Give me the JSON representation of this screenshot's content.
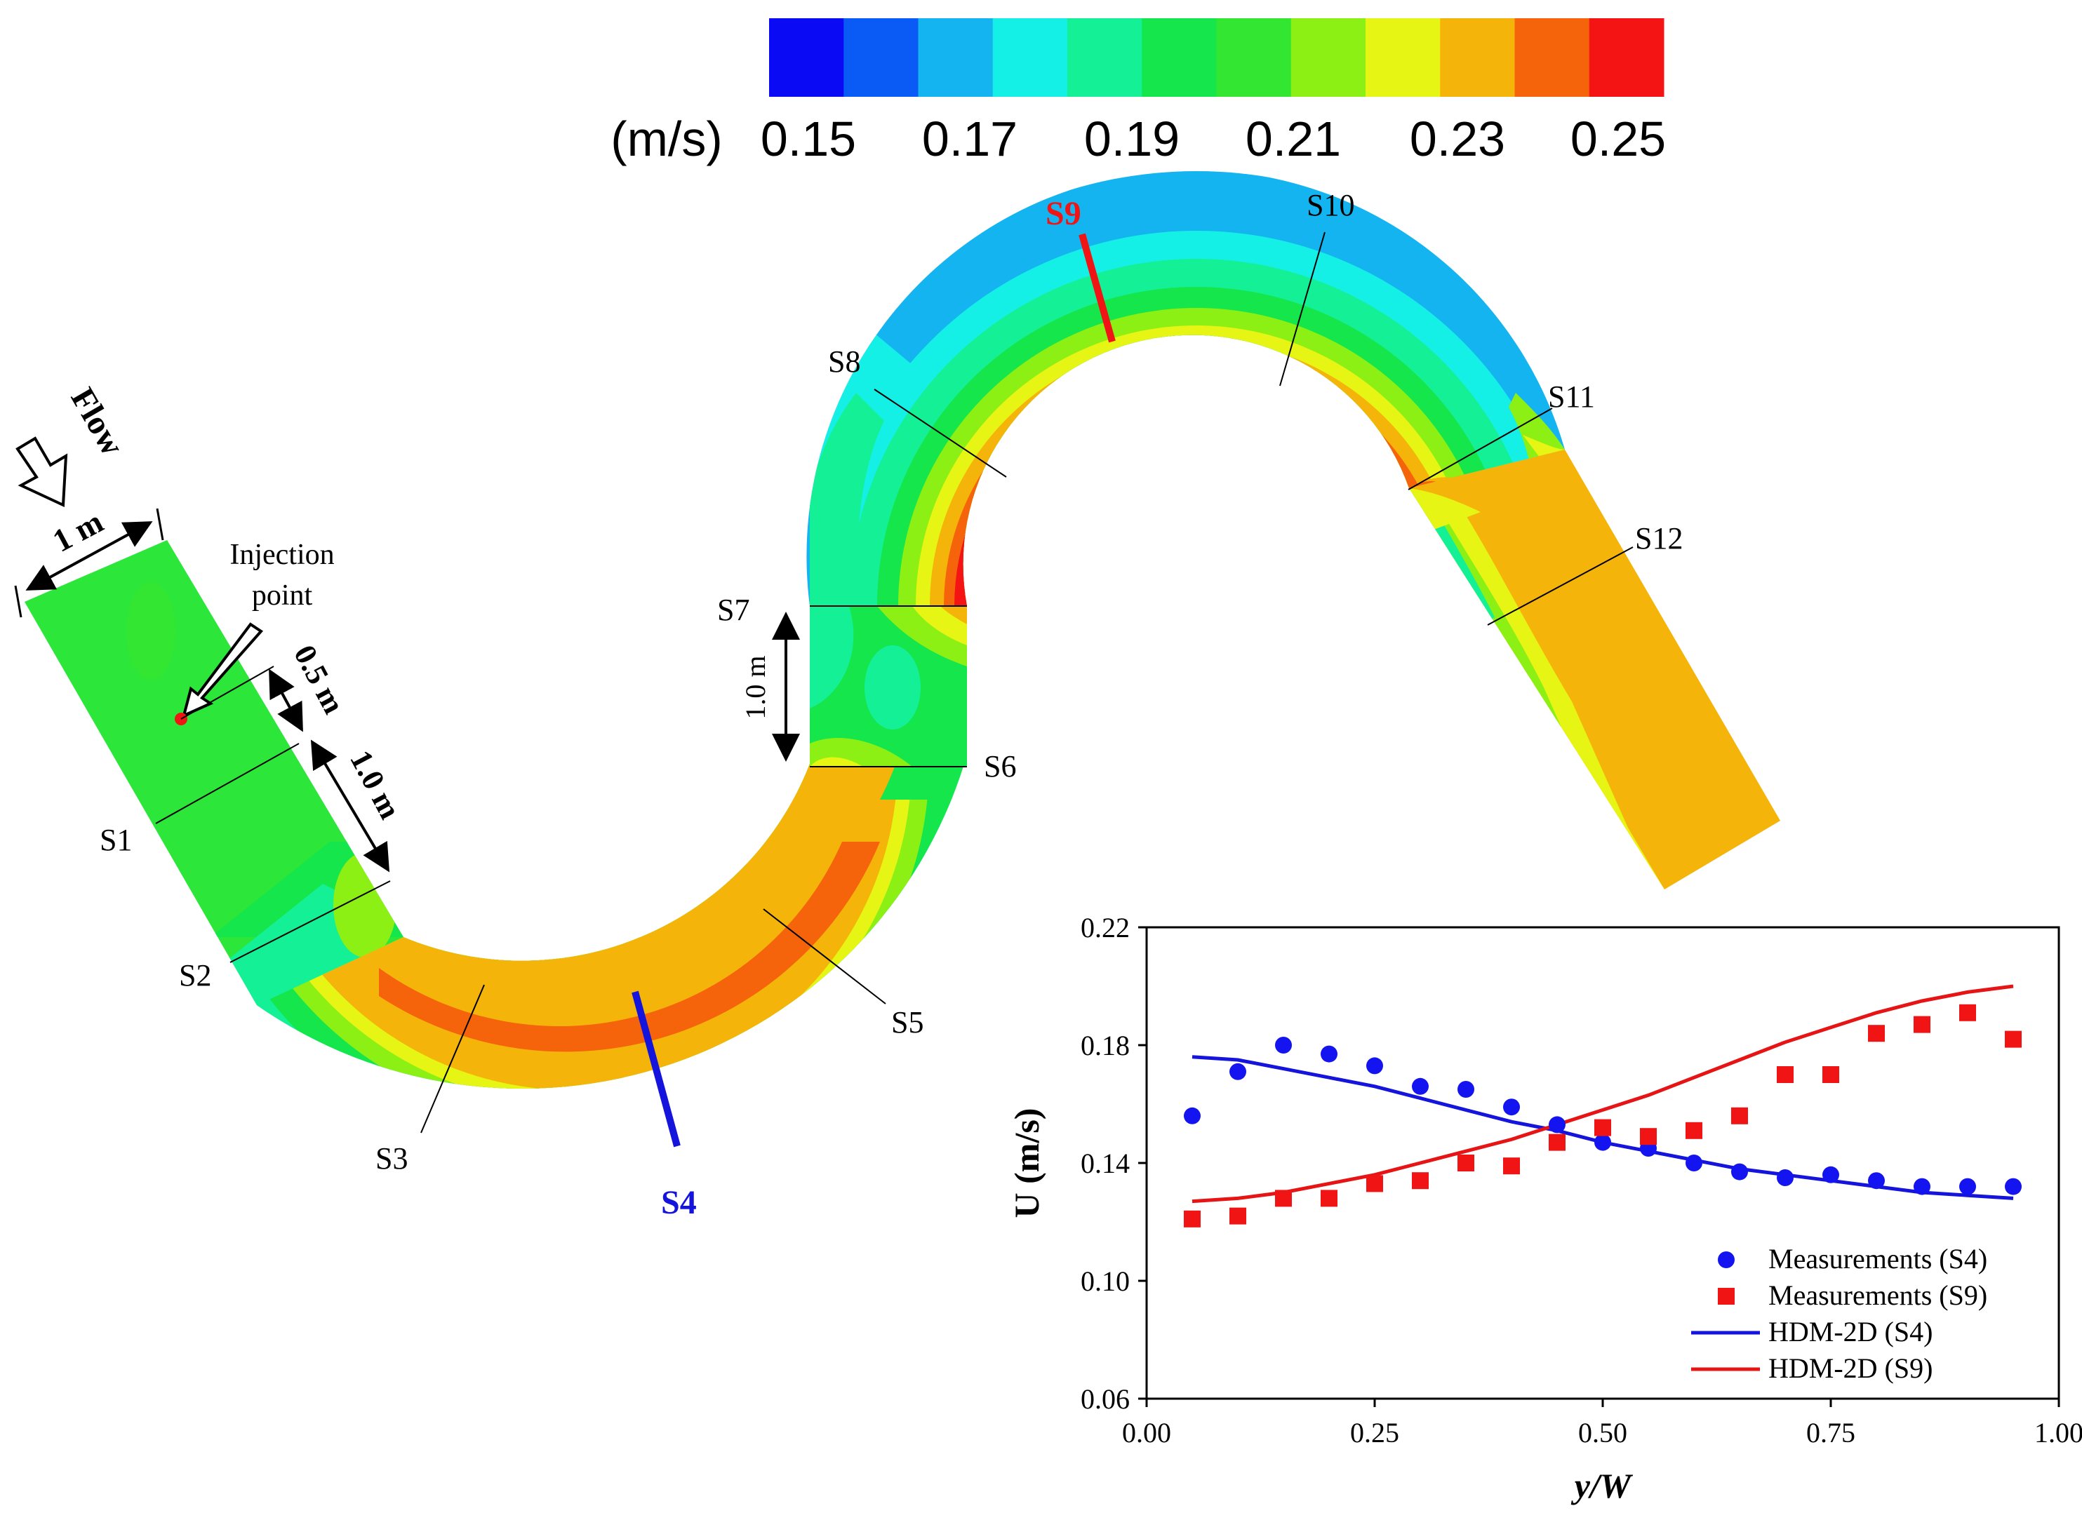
{
  "colorbar": {
    "unit_label": "(m/s)",
    "tick_labels": [
      "0.15",
      "0.17",
      "0.19",
      "0.21",
      "0.23",
      "0.25"
    ],
    "colors": [
      "#0a0af5",
      "#0a5af5",
      "#14b4f0",
      "#14f0e6",
      "#14f096",
      "#14e64b",
      "#32e632",
      "#8cf014",
      "#e6f514",
      "#f5b40a",
      "#f5640a",
      "#f51414"
    ]
  },
  "domain": {
    "flow_label": "Flow",
    "width_label": "1 m",
    "injection_label_line1": "Injection",
    "injection_label_line2": "point",
    "dist_05_label": "0.5 m",
    "dist_10_label": "1.0 m",
    "dist_10b_label": "1.0 m",
    "sections": [
      "S1",
      "S2",
      "S3",
      "S4",
      "S5",
      "S6",
      "S7",
      "S8",
      "S9",
      "S10",
      "S11",
      "S12"
    ],
    "highlight_s4_color": "#1414dc",
    "highlight_s9_color": "#f01414"
  },
  "chart_data": {
    "type": "scatter",
    "xlabel": "y/W",
    "ylabel": "U (m/s)",
    "xlim": [
      0,
      1
    ],
    "ylim": [
      0.06,
      0.22
    ],
    "x_ticks": [
      "0.00",
      "0.25",
      "0.50",
      "0.75",
      "1.00"
    ],
    "y_ticks": [
      "0.06",
      "0.10",
      "0.14",
      "0.18",
      "0.22"
    ],
    "legend_position": "bottom-right",
    "series": [
      {
        "name": "Measurements (S4)",
        "kind": "scatter",
        "marker": "circle",
        "color": "#1414f0",
        "x": [
          0.05,
          0.1,
          0.15,
          0.2,
          0.25,
          0.3,
          0.35,
          0.4,
          0.45,
          0.5,
          0.55,
          0.6,
          0.65,
          0.7,
          0.75,
          0.8,
          0.85,
          0.9,
          0.95
        ],
        "y": [
          0.156,
          0.171,
          0.18,
          0.177,
          0.173,
          0.166,
          0.165,
          0.159,
          0.153,
          0.147,
          0.145,
          0.14,
          0.137,
          0.135,
          0.136,
          0.134,
          0.132,
          0.132,
          0.132
        ]
      },
      {
        "name": "Measurements (S9)",
        "kind": "scatter",
        "marker": "square",
        "color": "#f01414",
        "x": [
          0.05,
          0.1,
          0.15,
          0.2,
          0.25,
          0.3,
          0.35,
          0.4,
          0.45,
          0.5,
          0.55,
          0.6,
          0.65,
          0.7,
          0.75,
          0.8,
          0.85,
          0.9,
          0.95
        ],
        "y": [
          0.121,
          0.122,
          0.128,
          0.128,
          0.133,
          0.134,
          0.14,
          0.139,
          0.147,
          0.152,
          0.149,
          0.151,
          0.156,
          0.17,
          0.17,
          0.184,
          0.187,
          0.191,
          0.182
        ]
      },
      {
        "name": "HDM-2D (S4)",
        "kind": "line",
        "color": "#1414dc",
        "x": [
          0.05,
          0.1,
          0.15,
          0.2,
          0.25,
          0.3,
          0.35,
          0.4,
          0.45,
          0.5,
          0.55,
          0.6,
          0.65,
          0.7,
          0.75,
          0.8,
          0.85,
          0.9,
          0.95
        ],
        "y": [
          0.176,
          0.175,
          0.172,
          0.169,
          0.166,
          0.162,
          0.158,
          0.154,
          0.151,
          0.147,
          0.144,
          0.141,
          0.138,
          0.136,
          0.134,
          0.132,
          0.13,
          0.129,
          0.128
        ]
      },
      {
        "name": "HDM-2D (S9)",
        "kind": "line",
        "color": "#e61414",
        "x": [
          0.05,
          0.1,
          0.15,
          0.2,
          0.25,
          0.3,
          0.35,
          0.4,
          0.45,
          0.5,
          0.55,
          0.6,
          0.65,
          0.7,
          0.75,
          0.8,
          0.85,
          0.9,
          0.95
        ],
        "y": [
          0.127,
          0.128,
          0.13,
          0.133,
          0.136,
          0.14,
          0.144,
          0.148,
          0.153,
          0.158,
          0.163,
          0.169,
          0.175,
          0.181,
          0.186,
          0.191,
          0.195,
          0.198,
          0.2
        ]
      }
    ]
  }
}
